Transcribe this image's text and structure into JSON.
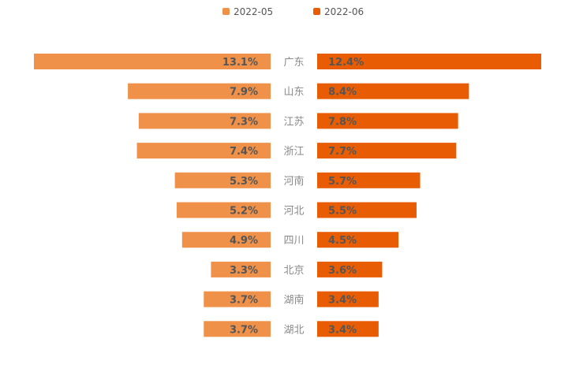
{
  "chart_data": {
    "type": "bar",
    "layout": "butterfly",
    "categories": [
      "广东",
      "山东",
      "江苏",
      "浙江",
      "河南",
      "河北",
      "四川",
      "北京",
      "湖南",
      "湖北"
    ],
    "series": [
      {
        "name": "2022-05",
        "color": "#f0914a",
        "side": "left",
        "values": [
          13.1,
          7.9,
          7.3,
          7.4,
          5.3,
          5.2,
          4.9,
          3.3,
          3.7,
          3.7
        ],
        "labels": [
          "13.1%",
          "7.9%",
          "7.3%",
          "7.4%",
          "5.3%",
          "5.2%",
          "4.9%",
          "3.3%",
          "3.7%",
          "3.7%"
        ]
      },
      {
        "name": "2022-06",
        "color": "#e85d04",
        "side": "right",
        "values": [
          12.4,
          8.4,
          7.8,
          7.7,
          5.7,
          5.5,
          4.5,
          3.6,
          3.4,
          3.4
        ],
        "labels": [
          "12.4%",
          "8.4%",
          "7.8%",
          "7.7%",
          "5.7%",
          "5.5%",
          "4.5%",
          "3.6%",
          "3.4%",
          "3.4%"
        ]
      }
    ],
    "unit": "%",
    "xlim": [
      0,
      13.1
    ],
    "legend": "top-center",
    "grid": false
  }
}
